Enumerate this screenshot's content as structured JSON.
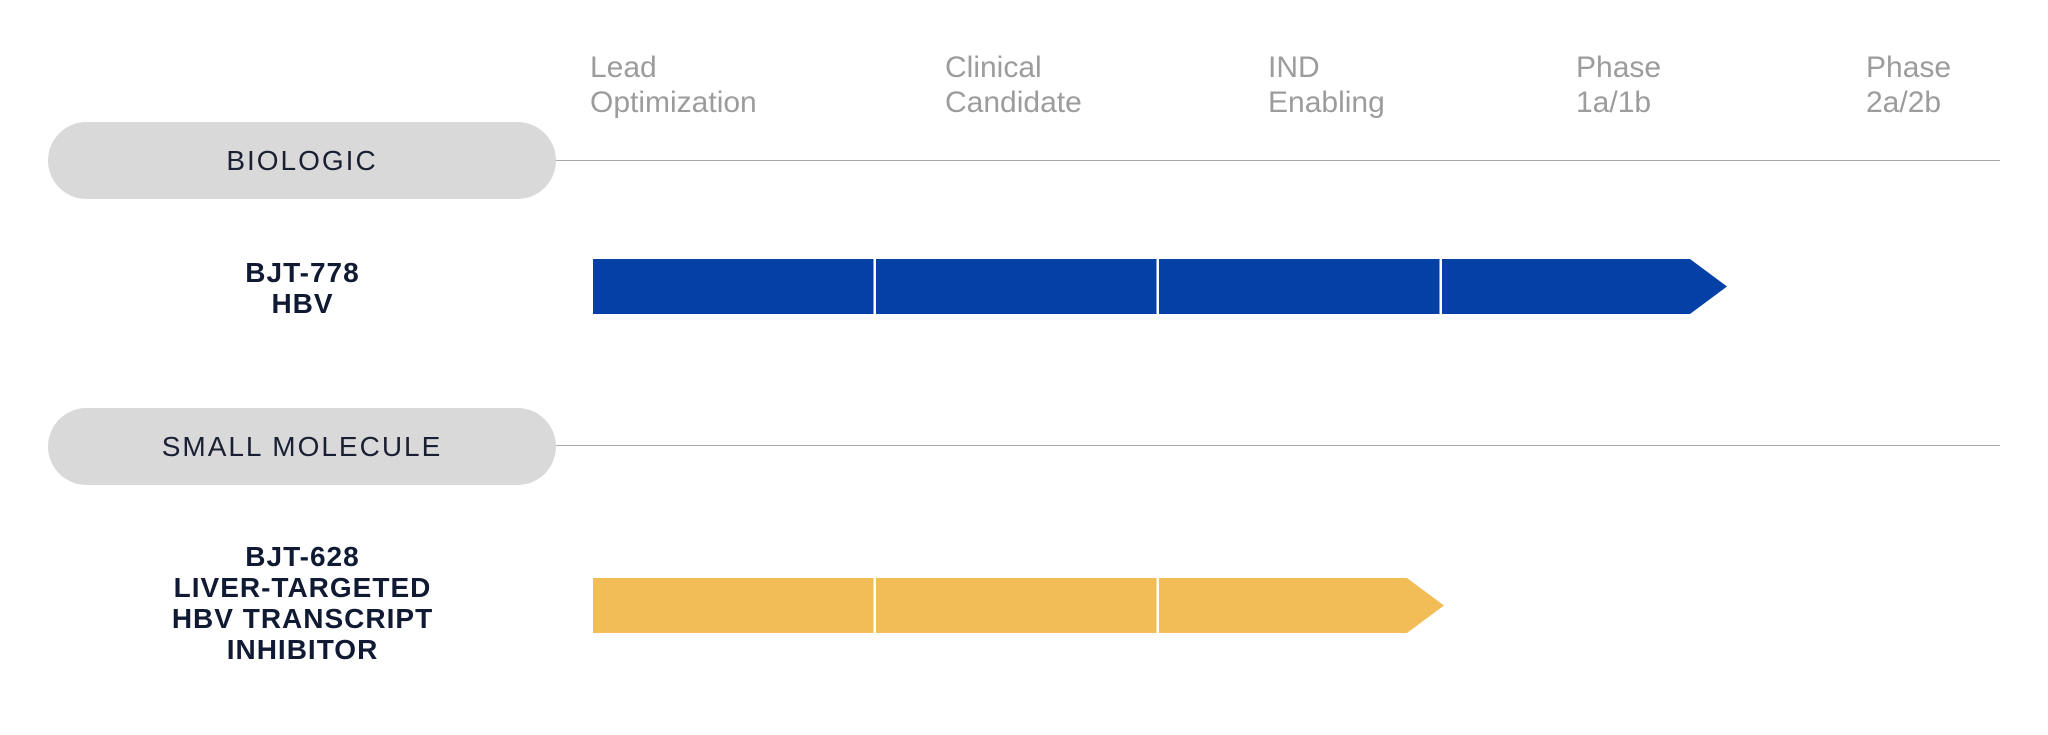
{
  "colors": {
    "biologic_bar": "#0540a6",
    "small_molecule_bar": "#f2bd57",
    "pill_bg": "#d9d9d9",
    "header_text": "#9c9c9c",
    "label_text": "#111a33"
  },
  "phases": [
    {
      "line1": "Lead",
      "line2": "Optimization"
    },
    {
      "line1": "Clinical",
      "line2": "Candidate"
    },
    {
      "line1": "IND",
      "line2": "Enabling"
    },
    {
      "line1": "Phase",
      "line2": "1a/1b"
    },
    {
      "line1": "Phase",
      "line2": "2a/2b"
    }
  ],
  "categories": [
    {
      "label": "BIOLOGIC",
      "programs": [
        {
          "lines": [
            "BJT-778",
            "HBV"
          ],
          "stages_completed": 4,
          "last_stage": "Phase 1a/1b"
        }
      ]
    },
    {
      "label": "SMALL MOLECULE",
      "programs": [
        {
          "lines": [
            "BJT-628",
            "LIVER-TARGETED",
            "HBV TRANSCRIPT",
            "INHIBITOR"
          ],
          "stages_completed": 3,
          "last_stage": "IND Enabling"
        }
      ]
    }
  ]
}
